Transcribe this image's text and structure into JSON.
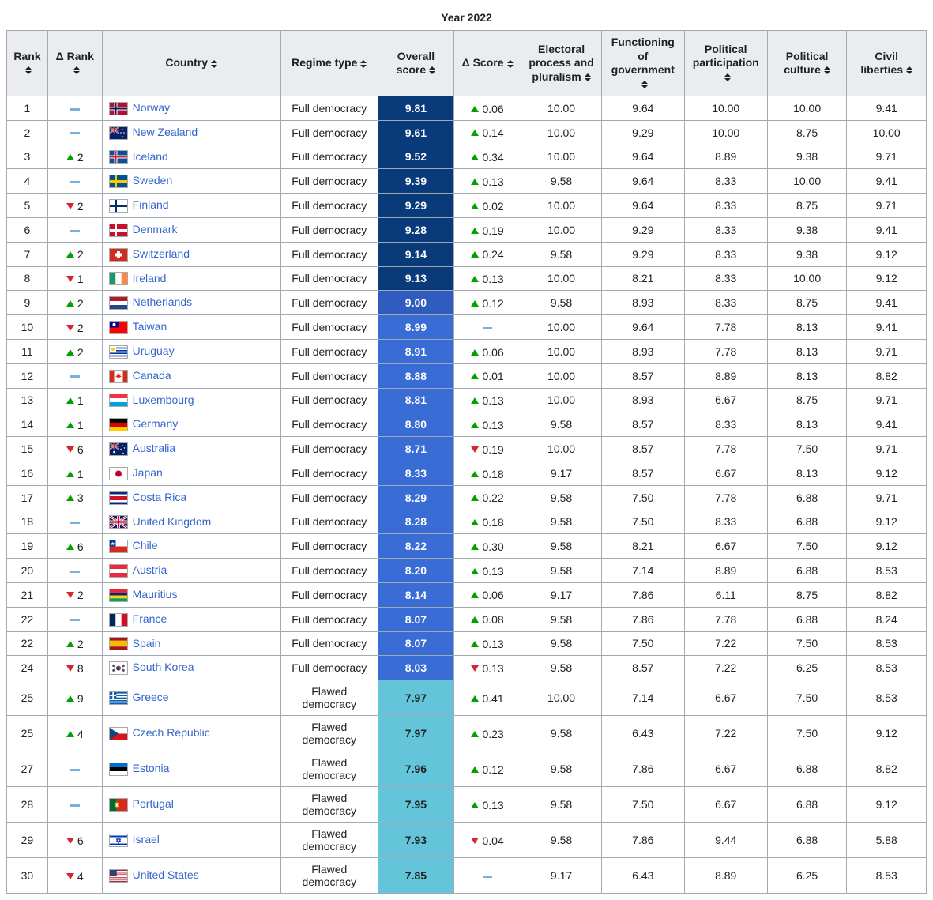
{
  "caption": "Year 2022",
  "columns": [
    "Rank",
    "Δ Rank",
    "Country",
    "Regime type",
    "Overall score",
    "Δ Score",
    "Electoral process and pluralism",
    "Functioning of government",
    "Political participation",
    "Political culture",
    "Civil liberties"
  ],
  "score_colors": {
    "tier1": "#093a7a",
    "tier2": "#305bbf",
    "tier3": "#3a6cd6",
    "tier4": "#64c5da",
    "tier4_text": "#202122"
  },
  "link_color": "#3366cc",
  "rows": [
    {
      "rank": 1,
      "drank_dir": "same",
      "drank_val": "",
      "country": "Norway",
      "flag": "NO",
      "regime": "Full democracy",
      "overall": "9.81",
      "tier": 1,
      "dscore_dir": "up",
      "dscore_val": "0.06",
      "c1": "10.00",
      "c2": "9.64",
      "c3": "10.00",
      "c4": "10.00",
      "c5": "9.41"
    },
    {
      "rank": 2,
      "drank_dir": "same",
      "drank_val": "",
      "country": "New Zealand",
      "flag": "NZ",
      "regime": "Full democracy",
      "overall": "9.61",
      "tier": 1,
      "dscore_dir": "up",
      "dscore_val": "0.14",
      "c1": "10.00",
      "c2": "9.29",
      "c3": "10.00",
      "c4": "8.75",
      "c5": "10.00"
    },
    {
      "rank": 3,
      "drank_dir": "up",
      "drank_val": "2",
      "country": "Iceland",
      "flag": "IS",
      "regime": "Full democracy",
      "overall": "9.52",
      "tier": 1,
      "dscore_dir": "up",
      "dscore_val": "0.34",
      "c1": "10.00",
      "c2": "9.64",
      "c3": "8.89",
      "c4": "9.38",
      "c5": "9.71"
    },
    {
      "rank": 4,
      "drank_dir": "same",
      "drank_val": "",
      "country": "Sweden",
      "flag": "SE",
      "regime": "Full democracy",
      "overall": "9.39",
      "tier": 1,
      "dscore_dir": "up",
      "dscore_val": "0.13",
      "c1": "9.58",
      "c2": "9.64",
      "c3": "8.33",
      "c4": "10.00",
      "c5": "9.41"
    },
    {
      "rank": 5,
      "drank_dir": "down",
      "drank_val": "2",
      "country": "Finland",
      "flag": "FI",
      "regime": "Full democracy",
      "overall": "9.29",
      "tier": 1,
      "dscore_dir": "up",
      "dscore_val": "0.02",
      "c1": "10.00",
      "c2": "9.64",
      "c3": "8.33",
      "c4": "8.75",
      "c5": "9.71"
    },
    {
      "rank": 6,
      "drank_dir": "same",
      "drank_val": "",
      "country": "Denmark",
      "flag": "DK",
      "regime": "Full democracy",
      "overall": "9.28",
      "tier": 1,
      "dscore_dir": "up",
      "dscore_val": "0.19",
      "c1": "10.00",
      "c2": "9.29",
      "c3": "8.33",
      "c4": "9.38",
      "c5": "9.41"
    },
    {
      "rank": 7,
      "drank_dir": "up",
      "drank_val": "2",
      "country": "Switzerland",
      "flag": "CH",
      "regime": "Full democracy",
      "overall": "9.14",
      "tier": 1,
      "dscore_dir": "up",
      "dscore_val": "0.24",
      "c1": "9.58",
      "c2": "9.29",
      "c3": "8.33",
      "c4": "9.38",
      "c5": "9.12"
    },
    {
      "rank": 8,
      "drank_dir": "down",
      "drank_val": "1",
      "country": "Ireland",
      "flag": "IE",
      "regime": "Full democracy",
      "overall": "9.13",
      "tier": 1,
      "dscore_dir": "up",
      "dscore_val": "0.13",
      "c1": "10.00",
      "c2": "8.21",
      "c3": "8.33",
      "c4": "10.00",
      "c5": "9.12"
    },
    {
      "rank": 9,
      "drank_dir": "up",
      "drank_val": "2",
      "country": "Netherlands",
      "flag": "NL",
      "regime": "Full democracy",
      "overall": "9.00",
      "tier": 2,
      "dscore_dir": "up",
      "dscore_val": "0.12",
      "c1": "9.58",
      "c2": "8.93",
      "c3": "8.33",
      "c4": "8.75",
      "c5": "9.41"
    },
    {
      "rank": 10,
      "drank_dir": "down",
      "drank_val": "2",
      "country": "Taiwan",
      "flag": "TW",
      "regime": "Full democracy",
      "overall": "8.99",
      "tier": 3,
      "dscore_dir": "same",
      "dscore_val": "",
      "c1": "10.00",
      "c2": "9.64",
      "c3": "7.78",
      "c4": "8.13",
      "c5": "9.41"
    },
    {
      "rank": 11,
      "drank_dir": "up",
      "drank_val": "2",
      "country": "Uruguay",
      "flag": "UY",
      "regime": "Full democracy",
      "overall": "8.91",
      "tier": 3,
      "dscore_dir": "up",
      "dscore_val": "0.06",
      "c1": "10.00",
      "c2": "8.93",
      "c3": "7.78",
      "c4": "8.13",
      "c5": "9.71"
    },
    {
      "rank": 12,
      "drank_dir": "same",
      "drank_val": "",
      "country": "Canada",
      "flag": "CA",
      "regime": "Full democracy",
      "overall": "8.88",
      "tier": 3,
      "dscore_dir": "up",
      "dscore_val": "0.01",
      "c1": "10.00",
      "c2": "8.57",
      "c3": "8.89",
      "c4": "8.13",
      "c5": "8.82"
    },
    {
      "rank": 13,
      "drank_dir": "up",
      "drank_val": "1",
      "country": "Luxembourg",
      "flag": "LU",
      "regime": "Full democracy",
      "overall": "8.81",
      "tier": 3,
      "dscore_dir": "up",
      "dscore_val": "0.13",
      "c1": "10.00",
      "c2": "8.93",
      "c3": "6.67",
      "c4": "8.75",
      "c5": "9.71"
    },
    {
      "rank": 14,
      "drank_dir": "up",
      "drank_val": "1",
      "country": "Germany",
      "flag": "DE",
      "regime": "Full democracy",
      "overall": "8.80",
      "tier": 3,
      "dscore_dir": "up",
      "dscore_val": "0.13",
      "c1": "9.58",
      "c2": "8.57",
      "c3": "8.33",
      "c4": "8.13",
      "c5": "9.41"
    },
    {
      "rank": 15,
      "drank_dir": "down",
      "drank_val": "6",
      "country": "Australia",
      "flag": "AU",
      "regime": "Full democracy",
      "overall": "8.71",
      "tier": 3,
      "dscore_dir": "down",
      "dscore_val": "0.19",
      "c1": "10.00",
      "c2": "8.57",
      "c3": "7.78",
      "c4": "7.50",
      "c5": "9.71"
    },
    {
      "rank": 16,
      "drank_dir": "up",
      "drank_val": "1",
      "country": "Japan",
      "flag": "JP",
      "regime": "Full democracy",
      "overall": "8.33",
      "tier": 3,
      "dscore_dir": "up",
      "dscore_val": "0.18",
      "c1": "9.17",
      "c2": "8.57",
      "c3": "6.67",
      "c4": "8.13",
      "c5": "9.12"
    },
    {
      "rank": 17,
      "drank_dir": "up",
      "drank_val": "3",
      "country": "Costa Rica",
      "flag": "CR",
      "regime": "Full democracy",
      "overall": "8.29",
      "tier": 3,
      "dscore_dir": "up",
      "dscore_val": "0.22",
      "c1": "9.58",
      "c2": "7.50",
      "c3": "7.78",
      "c4": "6.88",
      "c5": "9.71"
    },
    {
      "rank": 18,
      "drank_dir": "same",
      "drank_val": "",
      "country": "United Kingdom",
      "flag": "GB",
      "regime": "Full democracy",
      "overall": "8.28",
      "tier": 3,
      "dscore_dir": "up",
      "dscore_val": "0.18",
      "c1": "9.58",
      "c2": "7.50",
      "c3": "8.33",
      "c4": "6.88",
      "c5": "9.12"
    },
    {
      "rank": 19,
      "drank_dir": "up",
      "drank_val": "6",
      "country": "Chile",
      "flag": "CL",
      "regime": "Full democracy",
      "overall": "8.22",
      "tier": 3,
      "dscore_dir": "up",
      "dscore_val": "0.30",
      "c1": "9.58",
      "c2": "8.21",
      "c3": "6.67",
      "c4": "7.50",
      "c5": "9.12"
    },
    {
      "rank": 20,
      "drank_dir": "same",
      "drank_val": "",
      "country": "Austria",
      "flag": "AT",
      "regime": "Full democracy",
      "overall": "8.20",
      "tier": 3,
      "dscore_dir": "up",
      "dscore_val": "0.13",
      "c1": "9.58",
      "c2": "7.14",
      "c3": "8.89",
      "c4": "6.88",
      "c5": "8.53"
    },
    {
      "rank": 21,
      "drank_dir": "down",
      "drank_val": "2",
      "country": "Mauritius",
      "flag": "MU",
      "regime": "Full democracy",
      "overall": "8.14",
      "tier": 3,
      "dscore_dir": "up",
      "dscore_val": "0.06",
      "c1": "9.17",
      "c2": "7.86",
      "c3": "6.11",
      "c4": "8.75",
      "c5": "8.82"
    },
    {
      "rank": 22,
      "drank_dir": "same",
      "drank_val": "",
      "country": "France",
      "flag": "FR",
      "regime": "Full democracy",
      "overall": "8.07",
      "tier": 3,
      "dscore_dir": "up",
      "dscore_val": "0.08",
      "c1": "9.58",
      "c2": "7.86",
      "c3": "7.78",
      "c4": "6.88",
      "c5": "8.24"
    },
    {
      "rank": 22,
      "drank_dir": "up",
      "drank_val": "2",
      "country": "Spain",
      "flag": "ES",
      "regime": "Full democracy",
      "overall": "8.07",
      "tier": 3,
      "dscore_dir": "up",
      "dscore_val": "0.13",
      "c1": "9.58",
      "c2": "7.50",
      "c3": "7.22",
      "c4": "7.50",
      "c5": "8.53"
    },
    {
      "rank": 24,
      "drank_dir": "down",
      "drank_val": "8",
      "country": "South Korea",
      "flag": "KR",
      "regime": "Full democracy",
      "overall": "8.03",
      "tier": 3,
      "dscore_dir": "down",
      "dscore_val": "0.13",
      "c1": "9.58",
      "c2": "8.57",
      "c3": "7.22",
      "c4": "6.25",
      "c5": "8.53"
    },
    {
      "rank": 25,
      "drank_dir": "up",
      "drank_val": "9",
      "country": "Greece",
      "flag": "GR",
      "regime": "Flawed democracy",
      "overall": "7.97",
      "tier": 4,
      "dscore_dir": "up",
      "dscore_val": "0.41",
      "c1": "10.00",
      "c2": "7.14",
      "c3": "6.67",
      "c4": "7.50",
      "c5": "8.53"
    },
    {
      "rank": 25,
      "drank_dir": "up",
      "drank_val": "4",
      "country": "Czech Republic",
      "flag": "CZ",
      "regime": "Flawed democracy",
      "overall": "7.97",
      "tier": 4,
      "dscore_dir": "up",
      "dscore_val": "0.23",
      "c1": "9.58",
      "c2": "6.43",
      "c3": "7.22",
      "c4": "7.50",
      "c5": "9.12"
    },
    {
      "rank": 27,
      "drank_dir": "same",
      "drank_val": "",
      "country": "Estonia",
      "flag": "EE",
      "regime": "Flawed democracy",
      "overall": "7.96",
      "tier": 4,
      "dscore_dir": "up",
      "dscore_val": "0.12",
      "c1": "9.58",
      "c2": "7.86",
      "c3": "6.67",
      "c4": "6.88",
      "c5": "8.82"
    },
    {
      "rank": 28,
      "drank_dir": "same",
      "drank_val": "",
      "country": "Portugal",
      "flag": "PT",
      "regime": "Flawed democracy",
      "overall": "7.95",
      "tier": 4,
      "dscore_dir": "up",
      "dscore_val": "0.13",
      "c1": "9.58",
      "c2": "7.50",
      "c3": "6.67",
      "c4": "6.88",
      "c5": "9.12"
    },
    {
      "rank": 29,
      "drank_dir": "down",
      "drank_val": "6",
      "country": "Israel",
      "flag": "IL",
      "regime": "Flawed democracy",
      "overall": "7.93",
      "tier": 4,
      "dscore_dir": "down",
      "dscore_val": "0.04",
      "c1": "9.58",
      "c2": "7.86",
      "c3": "9.44",
      "c4": "6.88",
      "c5": "5.88"
    },
    {
      "rank": 30,
      "drank_dir": "down",
      "drank_val": "4",
      "country": "United States",
      "flag": "US",
      "regime": "Flawed democracy",
      "overall": "7.85",
      "tier": 4,
      "dscore_dir": "same",
      "dscore_val": "",
      "c1": "9.17",
      "c2": "6.43",
      "c3": "8.89",
      "c4": "6.25",
      "c5": "8.53"
    }
  ]
}
